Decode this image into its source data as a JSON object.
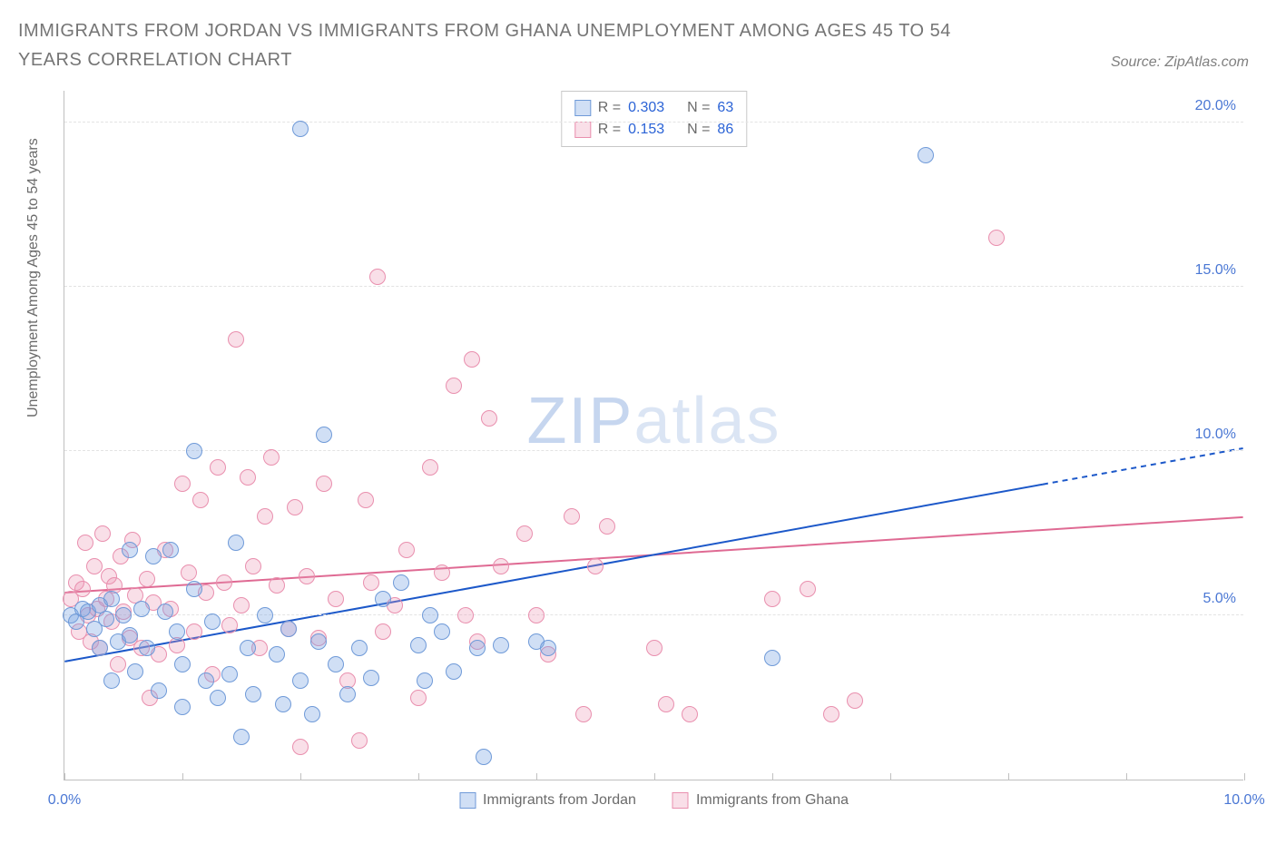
{
  "title": "IMMIGRANTS FROM JORDAN VS IMMIGRANTS FROM GHANA UNEMPLOYMENT AMONG AGES 45 TO 54 YEARS CORRELATION CHART",
  "source": "Source: ZipAtlas.com",
  "y_axis_label": "Unemployment Among Ages 45 to 54 years",
  "watermark": {
    "part1": "ZIP",
    "part2": "atlas"
  },
  "chart": {
    "type": "scatter",
    "xlim": [
      0,
      10
    ],
    "ylim": [
      0,
      21
    ],
    "x_ticks": [
      0,
      1,
      2,
      3,
      4,
      5,
      6,
      7,
      8,
      9,
      10
    ],
    "x_tick_labels": {
      "0": "0.0%",
      "10": "10.0%"
    },
    "y_ticks": [
      5,
      10,
      15,
      20
    ],
    "y_tick_labels": {
      "5": "5.0%",
      "10": "10.0%",
      "15": "15.0%",
      "20": "20.0%"
    },
    "background_color": "#ffffff",
    "grid_color": "#e3e3e3",
    "axis_color": "#c0c0c0",
    "tick_label_color": "#4a77d4",
    "marker_radius": 9,
    "series": [
      {
        "name": "Immigrants from Jordan",
        "fill": "rgba(121,163,226,0.35)",
        "stroke": "#6f9ad8",
        "corr_R": "0.303",
        "corr_N": "63",
        "trend": {
          "x1": 0,
          "y1": 3.6,
          "x2": 8.3,
          "y2": 9.0,
          "dash_x2": 10,
          "dash_y2": 10.1,
          "color": "#1c58c9",
          "width": 2
        },
        "points": [
          [
            0.05,
            5.0
          ],
          [
            0.1,
            4.8
          ],
          [
            0.15,
            5.2
          ],
          [
            0.2,
            5.1
          ],
          [
            0.25,
            4.6
          ],
          [
            0.3,
            5.3
          ],
          [
            0.3,
            4.0
          ],
          [
            0.35,
            4.9
          ],
          [
            0.4,
            5.5
          ],
          [
            0.4,
            3.0
          ],
          [
            0.45,
            4.2
          ],
          [
            0.5,
            5.0
          ],
          [
            0.55,
            4.4
          ],
          [
            0.55,
            7.0
          ],
          [
            0.6,
            3.3
          ],
          [
            0.65,
            5.2
          ],
          [
            0.7,
            4.0
          ],
          [
            0.75,
            6.8
          ],
          [
            0.8,
            2.7
          ],
          [
            0.85,
            5.1
          ],
          [
            0.9,
            7.0
          ],
          [
            0.95,
            4.5
          ],
          [
            1.0,
            3.5
          ],
          [
            1.0,
            2.2
          ],
          [
            1.1,
            5.8
          ],
          [
            1.1,
            10.0
          ],
          [
            1.2,
            3.0
          ],
          [
            1.25,
            4.8
          ],
          [
            1.3,
            2.5
          ],
          [
            1.4,
            3.2
          ],
          [
            1.45,
            7.2
          ],
          [
            1.5,
            1.3
          ],
          [
            1.55,
            4.0
          ],
          [
            1.6,
            2.6
          ],
          [
            1.7,
            5.0
          ],
          [
            1.8,
            3.8
          ],
          [
            1.85,
            2.3
          ],
          [
            1.9,
            4.6
          ],
          [
            2.0,
            3.0
          ],
          [
            2.1,
            2.0
          ],
          [
            2.15,
            4.2
          ],
          [
            2.2,
            10.5
          ],
          [
            2.3,
            3.5
          ],
          [
            2.4,
            2.6
          ],
          [
            2.5,
            4.0
          ],
          [
            2.6,
            3.1
          ],
          [
            2.7,
            5.5
          ],
          [
            2.85,
            6.0
          ],
          [
            3.0,
            4.1
          ],
          [
            3.05,
            3.0
          ],
          [
            3.1,
            5.0
          ],
          [
            3.2,
            4.5
          ],
          [
            3.3,
            3.3
          ],
          [
            3.5,
            4.0
          ],
          [
            3.55,
            0.7
          ],
          [
            3.7,
            4.1
          ],
          [
            4.0,
            4.2
          ],
          [
            4.1,
            4.0
          ],
          [
            6.0,
            3.7
          ],
          [
            2.0,
            19.8
          ],
          [
            7.3,
            19.0
          ]
        ]
      },
      {
        "name": "Immigrants from Ghana",
        "fill": "rgba(236,148,178,0.30)",
        "stroke": "#e98fae",
        "corr_R": "0.153",
        "corr_N": "86",
        "trend": {
          "x1": 0,
          "y1": 5.7,
          "x2": 10,
          "y2": 8.0,
          "color": "#df6a93",
          "width": 2
        },
        "points": [
          [
            0.05,
            5.5
          ],
          [
            0.1,
            6.0
          ],
          [
            0.12,
            4.5
          ],
          [
            0.15,
            5.8
          ],
          [
            0.18,
            7.2
          ],
          [
            0.2,
            5.0
          ],
          [
            0.22,
            4.2
          ],
          [
            0.25,
            6.5
          ],
          [
            0.28,
            5.2
          ],
          [
            0.3,
            4.0
          ],
          [
            0.32,
            7.5
          ],
          [
            0.35,
            5.5
          ],
          [
            0.38,
            6.2
          ],
          [
            0.4,
            4.8
          ],
          [
            0.42,
            5.9
          ],
          [
            0.45,
            3.5
          ],
          [
            0.48,
            6.8
          ],
          [
            0.5,
            5.1
          ],
          [
            0.55,
            4.3
          ],
          [
            0.58,
            7.3
          ],
          [
            0.6,
            5.6
          ],
          [
            0.65,
            4.0
          ],
          [
            0.7,
            6.1
          ],
          [
            0.72,
            2.5
          ],
          [
            0.75,
            5.4
          ],
          [
            0.8,
            3.8
          ],
          [
            0.85,
            7.0
          ],
          [
            0.9,
            5.2
          ],
          [
            0.95,
            4.1
          ],
          [
            1.0,
            9.0
          ],
          [
            1.05,
            6.3
          ],
          [
            1.1,
            4.5
          ],
          [
            1.15,
            8.5
          ],
          [
            1.2,
            5.7
          ],
          [
            1.25,
            3.2
          ],
          [
            1.3,
            9.5
          ],
          [
            1.35,
            6.0
          ],
          [
            1.4,
            4.7
          ],
          [
            1.45,
            13.4
          ],
          [
            1.5,
            5.3
          ],
          [
            1.55,
            9.2
          ],
          [
            1.6,
            6.5
          ],
          [
            1.65,
            4.0
          ],
          [
            1.7,
            8.0
          ],
          [
            1.75,
            9.8
          ],
          [
            1.8,
            5.9
          ],
          [
            1.9,
            4.6
          ],
          [
            1.95,
            8.3
          ],
          [
            2.0,
            1.0
          ],
          [
            2.05,
            6.2
          ],
          [
            2.15,
            4.3
          ],
          [
            2.2,
            9.0
          ],
          [
            2.3,
            5.5
          ],
          [
            2.4,
            3.0
          ],
          [
            2.5,
            1.2
          ],
          [
            2.55,
            8.5
          ],
          [
            2.6,
            6.0
          ],
          [
            2.65,
            15.3
          ],
          [
            2.7,
            4.5
          ],
          [
            2.8,
            5.3
          ],
          [
            2.9,
            7.0
          ],
          [
            3.0,
            2.5
          ],
          [
            3.1,
            9.5
          ],
          [
            3.2,
            6.3
          ],
          [
            3.3,
            12.0
          ],
          [
            3.4,
            5.0
          ],
          [
            3.45,
            12.8
          ],
          [
            3.5,
            4.2
          ],
          [
            3.6,
            11.0
          ],
          [
            3.7,
            6.5
          ],
          [
            3.9,
            7.5
          ],
          [
            4.0,
            5.0
          ],
          [
            4.1,
            3.8
          ],
          [
            4.3,
            8.0
          ],
          [
            4.4,
            2.0
          ],
          [
            4.5,
            6.5
          ],
          [
            4.6,
            7.7
          ],
          [
            5.0,
            4.0
          ],
          [
            5.1,
            2.3
          ],
          [
            5.3,
            2.0
          ],
          [
            6.0,
            5.5
          ],
          [
            6.3,
            5.8
          ],
          [
            6.5,
            2.0
          ],
          [
            6.7,
            2.4
          ],
          [
            7.9,
            16.5
          ]
        ]
      }
    ]
  },
  "legend_labels": {
    "R": "R =",
    "N": "N ="
  }
}
